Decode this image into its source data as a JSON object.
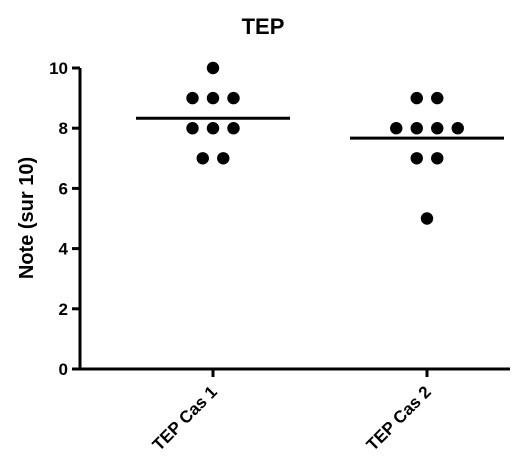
{
  "chart_data": {
    "type": "scatter",
    "title": "TEP",
    "xlabel": "",
    "ylabel": "Note (sur 10)",
    "ylim": [
      0,
      10
    ],
    "yticks": [
      "0",
      "2",
      "4",
      "6",
      "8",
      "10"
    ],
    "categories": [
      "TEP Cas 1",
      "TEP Cas 2"
    ],
    "series": [
      {
        "values": [
          10,
          9,
          9,
          9,
          8,
          8,
          8,
          7,
          7
        ],
        "mean": 8.33
      },
      {
        "values": [
          9,
          9,
          8,
          8,
          8,
          8,
          7,
          7,
          5
        ],
        "mean": 7.67
      }
    ],
    "grid": false,
    "legend": "none",
    "colors": {
      "points": "#000000",
      "axis": "#000000"
    }
  }
}
